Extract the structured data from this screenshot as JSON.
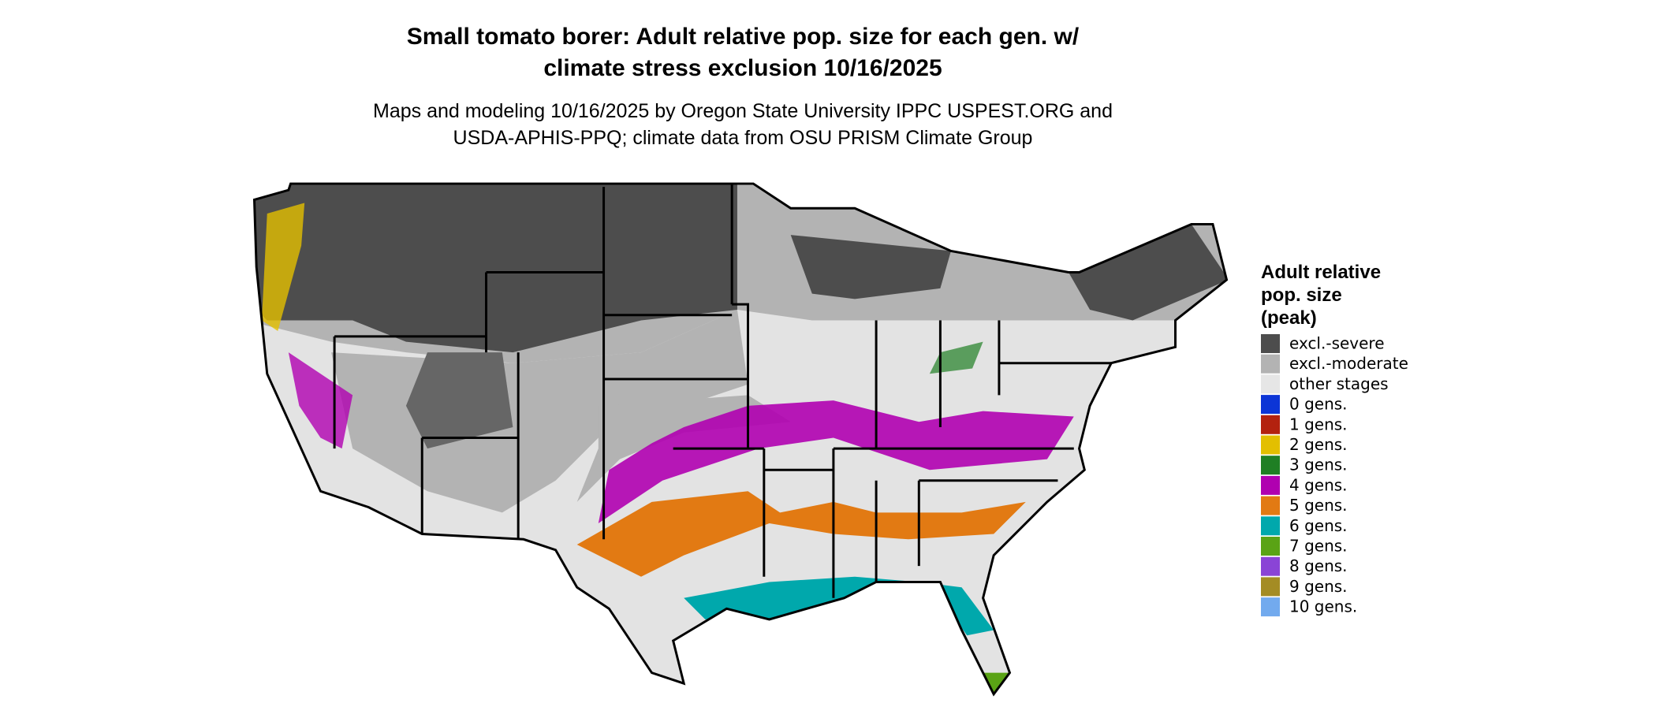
{
  "title_lines": [
    "Small tomato borer: Adult relative pop. size for each gen. w/",
    "climate stress exclusion 10/16/2025"
  ],
  "subtitle_lines": [
    "Maps and modeling 10/16/2025 by Oregon State University IPPC USPEST.ORG and",
    "USDA-APHIS-PPQ; climate data from OSU PRISM Climate Group"
  ],
  "legend": {
    "title_lines": [
      "Adult relative",
      "pop. size",
      "(peak)"
    ],
    "items": [
      {
        "label": "excl.-severe",
        "color": "#4d4d4d"
      },
      {
        "label": "excl.-moderate",
        "color": "#b3b3b3"
      },
      {
        "label": "other stages",
        "color": "#e6e6e6"
      },
      {
        "label": "0 gens.",
        "color": "#0c35d6"
      },
      {
        "label": "1 gens.",
        "color": "#b3220f"
      },
      {
        "label": "2 gens.",
        "color": "#e3bf00"
      },
      {
        "label": "3 gens.",
        "color": "#1f7f24"
      },
      {
        "label": "4 gens.",
        "color": "#b000b0"
      },
      {
        "label": "5 gens.",
        "color": "#e27a13"
      },
      {
        "label": "6 gens.",
        "color": "#00a8ac"
      },
      {
        "label": "7 gens.",
        "color": "#5aa315"
      },
      {
        "label": "8 gens.",
        "color": "#8a44d6"
      },
      {
        "label": "9 gens.",
        "color": "#a48c24"
      },
      {
        "label": "10 gens.",
        "color": "#72aaee"
      }
    ]
  }
}
